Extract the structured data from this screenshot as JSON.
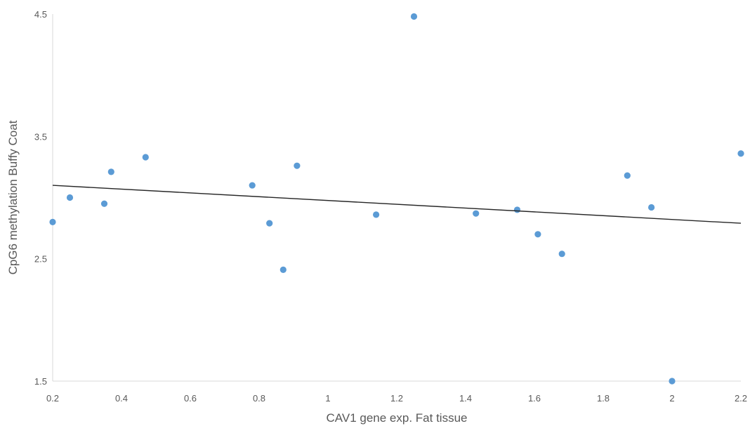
{
  "chart_data": {
    "type": "scatter",
    "xlabel": "CAV1 gene exp. Fat tissue",
    "ylabel": "CpG6 methylation Buffy Coat",
    "xlim": [
      0.2,
      2.2
    ],
    "ylim": [
      1.5,
      4.5
    ],
    "x_ticks": [
      "0.2",
      "0.4",
      "0.6",
      "0.8",
      "1",
      "1.2",
      "1.4",
      "1.6",
      "1.8",
      "2",
      "2.2"
    ],
    "y_ticks": [
      "1.5",
      "2.5",
      "3.5",
      "4.5"
    ],
    "grid": false,
    "points": [
      {
        "x": 0.2,
        "y": 2.8
      },
      {
        "x": 0.25,
        "y": 3.0
      },
      {
        "x": 0.35,
        "y": 2.95
      },
      {
        "x": 0.37,
        "y": 3.21
      },
      {
        "x": 0.47,
        "y": 3.33
      },
      {
        "x": 0.78,
        "y": 3.1
      },
      {
        "x": 0.83,
        "y": 2.79
      },
      {
        "x": 0.87,
        "y": 2.41
      },
      {
        "x": 0.91,
        "y": 3.26
      },
      {
        "x": 1.14,
        "y": 2.86
      },
      {
        "x": 1.25,
        "y": 4.48
      },
      {
        "x": 1.43,
        "y": 2.87
      },
      {
        "x": 1.55,
        "y": 2.9
      },
      {
        "x": 1.61,
        "y": 2.7
      },
      {
        "x": 1.68,
        "y": 2.54
      },
      {
        "x": 1.87,
        "y": 3.18
      },
      {
        "x": 1.94,
        "y": 2.92
      },
      {
        "x": 2.0,
        "y": 1.5
      },
      {
        "x": 2.2,
        "y": 3.36
      }
    ],
    "trendline": {
      "type": "linear",
      "x": [
        0.2,
        2.2
      ],
      "y": [
        3.1,
        2.79
      ]
    },
    "colors": {
      "points": "#5b9bd5",
      "trendline": "#262626",
      "axis": "#d9d9d9",
      "text": "#595959"
    }
  }
}
